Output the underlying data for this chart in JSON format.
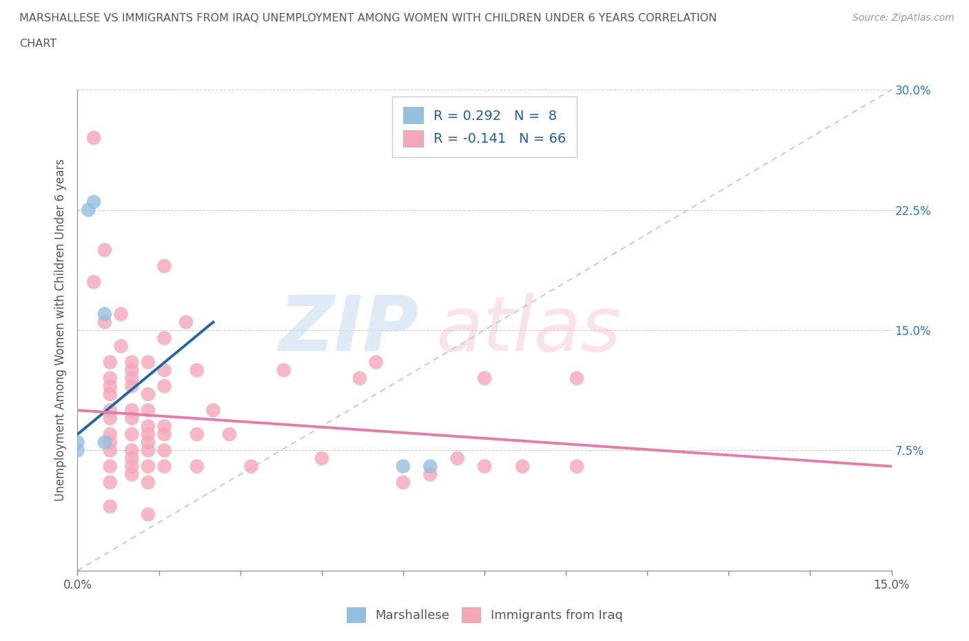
{
  "title_line1": "MARSHALLESE VS IMMIGRANTS FROM IRAQ UNEMPLOYMENT AMONG WOMEN WITH CHILDREN UNDER 6 YEARS CORRELATION",
  "title_line2": "CHART",
  "source": "Source: ZipAtlas.com",
  "ylabel": "Unemployment Among Women with Children Under 6 years",
  "xlim": [
    0.0,
    0.15
  ],
  "ylim": [
    0.0,
    0.3
  ],
  "xtick_positions": [
    0.0,
    0.015,
    0.03,
    0.045,
    0.06,
    0.075,
    0.09,
    0.105,
    0.12,
    0.135,
    0.15
  ],
  "ytick_positions": [
    0.0,
    0.075,
    0.15,
    0.225,
    0.3
  ],
  "marshallese_color": "#92c0e0",
  "iraq_color": "#f4a7b9",
  "marshallese_line_color": "#2166ac",
  "iraq_line_color": "#e87aaa",
  "diagonal_color": "#aec6e8",
  "background_color": "#ffffff",
  "R_marshallese": 0.292,
  "N_marshallese": 8,
  "R_iraq": -0.141,
  "N_iraq": 66,
  "marshallese_scatter": [
    [
      0.0,
      0.075
    ],
    [
      0.0,
      0.08
    ],
    [
      0.002,
      0.225
    ],
    [
      0.003,
      0.23
    ],
    [
      0.005,
      0.16
    ],
    [
      0.005,
      0.08
    ],
    [
      0.06,
      0.065
    ],
    [
      0.065,
      0.065
    ]
  ],
  "iraq_scatter": [
    [
      0.003,
      0.27
    ],
    [
      0.003,
      0.18
    ],
    [
      0.005,
      0.2
    ],
    [
      0.005,
      0.155
    ],
    [
      0.006,
      0.13
    ],
    [
      0.006,
      0.12
    ],
    [
      0.006,
      0.115
    ],
    [
      0.006,
      0.11
    ],
    [
      0.006,
      0.1
    ],
    [
      0.006,
      0.095
    ],
    [
      0.006,
      0.085
    ],
    [
      0.006,
      0.08
    ],
    [
      0.006,
      0.075
    ],
    [
      0.006,
      0.065
    ],
    [
      0.006,
      0.055
    ],
    [
      0.006,
      0.04
    ],
    [
      0.008,
      0.16
    ],
    [
      0.008,
      0.14
    ],
    [
      0.01,
      0.13
    ],
    [
      0.01,
      0.125
    ],
    [
      0.01,
      0.12
    ],
    [
      0.01,
      0.115
    ],
    [
      0.01,
      0.1
    ],
    [
      0.01,
      0.095
    ],
    [
      0.01,
      0.085
    ],
    [
      0.01,
      0.075
    ],
    [
      0.01,
      0.07
    ],
    [
      0.01,
      0.065
    ],
    [
      0.01,
      0.06
    ],
    [
      0.013,
      0.13
    ],
    [
      0.013,
      0.11
    ],
    [
      0.013,
      0.1
    ],
    [
      0.013,
      0.09
    ],
    [
      0.013,
      0.085
    ],
    [
      0.013,
      0.08
    ],
    [
      0.013,
      0.075
    ],
    [
      0.013,
      0.065
    ],
    [
      0.013,
      0.055
    ],
    [
      0.013,
      0.035
    ],
    [
      0.016,
      0.19
    ],
    [
      0.016,
      0.145
    ],
    [
      0.016,
      0.125
    ],
    [
      0.016,
      0.115
    ],
    [
      0.016,
      0.09
    ],
    [
      0.016,
      0.085
    ],
    [
      0.016,
      0.075
    ],
    [
      0.016,
      0.065
    ],
    [
      0.02,
      0.155
    ],
    [
      0.022,
      0.125
    ],
    [
      0.022,
      0.085
    ],
    [
      0.022,
      0.065
    ],
    [
      0.025,
      0.1
    ],
    [
      0.028,
      0.085
    ],
    [
      0.032,
      0.065
    ],
    [
      0.038,
      0.125
    ],
    [
      0.045,
      0.07
    ],
    [
      0.052,
      0.12
    ],
    [
      0.055,
      0.13
    ],
    [
      0.06,
      0.055
    ],
    [
      0.065,
      0.06
    ],
    [
      0.07,
      0.07
    ],
    [
      0.075,
      0.12
    ],
    [
      0.075,
      0.065
    ],
    [
      0.082,
      0.065
    ],
    [
      0.092,
      0.12
    ],
    [
      0.092,
      0.065
    ]
  ],
  "marshallese_trendline_x": [
    0.0,
    0.025
  ],
  "marshallese_trendline_y": [
    0.085,
    0.155
  ],
  "iraq_trendline_x": [
    0.0,
    0.15
  ],
  "iraq_trendline_y": [
    0.1,
    0.065
  ]
}
